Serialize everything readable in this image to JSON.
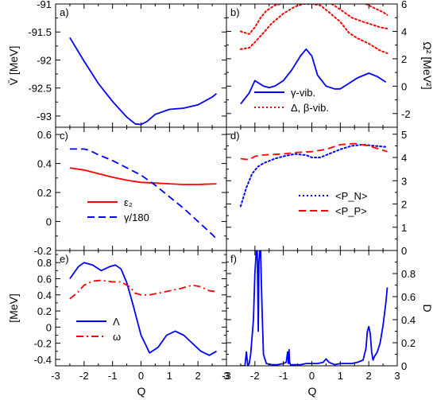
{
  "chart_data": [
    {
      "id": "a",
      "panel_label": "a)",
      "type": "line",
      "ylabel": "V̄ [MeV]",
      "ylabel_side": "left",
      "xlim": [
        -3,
        3
      ],
      "ylim": [
        -93.2,
        -91
      ],
      "yticks": [
        "-91",
        "-91.5",
        "-92",
        "-92.5",
        "-93"
      ],
      "ytick_values": [
        -91,
        -91.5,
        -92,
        -92.5,
        -93
      ],
      "series": [
        {
          "color": "#0000ff",
          "dash": "solid",
          "x": [
            -2.5,
            -2.0,
            -1.5,
            -1.0,
            -0.5,
            -0.2,
            0.0,
            0.2,
            0.5,
            1.0,
            1.5,
            2.0,
            2.5,
            2.65
          ],
          "y": [
            -91.6,
            -92.02,
            -92.42,
            -92.74,
            -93.02,
            -93.14,
            -93.15,
            -93.1,
            -92.97,
            -92.88,
            -92.86,
            -92.8,
            -92.66,
            -92.6
          ]
        }
      ]
    },
    {
      "id": "b",
      "panel_label": "b)",
      "type": "line",
      "ylabel": "Ω² [MeV²]",
      "ylabel_side": "right",
      "xlim": [
        -3,
        3
      ],
      "ylim": [
        -3,
        6
      ],
      "yticks": [
        "6",
        "4",
        "2",
        "0",
        "-2"
      ],
      "ytick_values": [
        6,
        4,
        2,
        0,
        -2
      ],
      "legend": [
        "γ-vib.",
        "Δ, β-vib."
      ],
      "series": [
        {
          "name": "γ-vib.",
          "color": "#0000ff",
          "dash": "solid",
          "x": [
            -2.5,
            -2.2,
            -2.0,
            -1.7,
            -1.5,
            -1.3,
            -1.0,
            -0.7,
            -0.4,
            -0.2,
            0.0,
            0.2,
            0.5,
            0.8,
            1.0,
            1.3,
            1.6,
            2.0,
            2.3,
            2.6
          ],
          "y": [
            -1.3,
            -0.5,
            0.4,
            0.0,
            -0.1,
            0.0,
            0.4,
            1.2,
            2.2,
            2.7,
            2.2,
            0.8,
            0.0,
            -0.2,
            -0.2,
            0.2,
            0.6,
            0.95,
            0.7,
            0.3
          ]
        },
        {
          "name": "Δ, β-vib.",
          "color": "#ff0000",
          "dash": "dotted",
          "x": [
            -2.5,
            -2.2,
            -2.0,
            -1.7,
            -1.4,
            -1.0,
            -0.6,
            -0.3,
            0.0,
            0.3,
            0.6,
            1.0,
            1.3,
            1.6,
            2.0,
            2.4,
            2.65
          ],
          "y": [
            2.7,
            2.8,
            3.2,
            3.9,
            4.6,
            5.3,
            5.8,
            6.0,
            6.0,
            5.9,
            5.4,
            4.7,
            3.9,
            3.5,
            3.1,
            2.6,
            2.4
          ]
        },
        {
          "color": "#ff0000",
          "dash": "dotted",
          "x": [
            -2.5,
            -2.2,
            -2.0,
            -1.8,
            -1.6,
            -1.3,
            -1.1
          ],
          "y": [
            4.0,
            3.8,
            4.3,
            5.0,
            5.5,
            5.9,
            6.0
          ]
        },
        {
          "color": "#ff0000",
          "dash": "dotted",
          "x": [
            0.7,
            1.0,
            1.4,
            1.8,
            2.1,
            2.4,
            2.65
          ],
          "y": [
            6.0,
            5.6,
            5.0,
            4.7,
            4.5,
            4.3,
            4.2
          ]
        },
        {
          "color": "#ff0000",
          "dash": "dotted",
          "x": [
            1.9,
            2.2,
            2.5,
            2.65
          ],
          "y": [
            6.0,
            5.7,
            5.4,
            5.2
          ]
        }
      ]
    },
    {
      "id": "c",
      "panel_label": "c)",
      "type": "line",
      "ylabel": "",
      "ylabel_side": "left",
      "xlim": [
        -3,
        3
      ],
      "ylim": [
        -0.2,
        0.65
      ],
      "yticks": [
        "0.6",
        "0.4",
        "0.2",
        "0",
        "-0.2"
      ],
      "ytick_values": [
        0.6,
        0.4,
        0.2,
        0,
        -0.2
      ],
      "legend": [
        "ε₂",
        "γ/180"
      ],
      "series": [
        {
          "name": "ε₂",
          "color": "#ff0000",
          "dash": "solid",
          "x": [
            -2.5,
            -2.0,
            -1.5,
            -1.0,
            -0.5,
            0.0,
            0.5,
            1.0,
            1.5,
            2.0,
            2.65
          ],
          "y": [
            0.37,
            0.355,
            0.33,
            0.305,
            0.285,
            0.27,
            0.265,
            0.26,
            0.255,
            0.255,
            0.26
          ]
        },
        {
          "name": "γ/180",
          "color": "#0000ff",
          "dash": "dashed",
          "x": [
            -2.5,
            -2.0,
            -1.8,
            -1.5,
            -1.0,
            -0.5,
            0.0,
            0.5,
            1.0,
            1.5,
            2.0,
            2.5,
            2.65
          ],
          "y": [
            0.5,
            0.5,
            0.49,
            0.46,
            0.42,
            0.37,
            0.32,
            0.25,
            0.17,
            0.09,
            0.0,
            -0.09,
            -0.12
          ]
        }
      ]
    },
    {
      "id": "d",
      "panel_label": "d)",
      "type": "line",
      "ylabel": "",
      "ylabel_side": "right",
      "xlim": [
        -3,
        3
      ],
      "ylim": [
        0,
        5.3
      ],
      "yticks": [
        "5",
        "4",
        "3",
        "2",
        "1",
        "0"
      ],
      "ytick_values": [
        5,
        4,
        3,
        2,
        1,
        0
      ],
      "legend": [
        "<P_N>",
        "<P_P>"
      ],
      "series": [
        {
          "name": "<P_N>",
          "color": "#0000ff",
          "dash": "dotted",
          "x": [
            -2.5,
            -2.3,
            -2.1,
            -1.9,
            -1.7,
            -1.5,
            -1.3,
            -1.0,
            -0.6,
            -0.2,
            0.0,
            0.3,
            0.6,
            1.0,
            1.4,
            1.8,
            2.2,
            2.65
          ],
          "y": [
            1.9,
            2.7,
            3.3,
            3.6,
            3.75,
            3.85,
            3.95,
            4.05,
            4.15,
            4.1,
            4.0,
            4.0,
            4.15,
            4.35,
            4.5,
            4.55,
            4.5,
            4.45
          ]
        },
        {
          "name": "<P_P>",
          "color": "#ff0000",
          "dash": "dashed",
          "x": [
            -2.5,
            -2.2,
            -2.0,
            -1.8,
            -1.5,
            -1.0,
            -0.5,
            0.0,
            0.5,
            1.0,
            1.5,
            2.0,
            2.65
          ],
          "y": [
            3.95,
            3.9,
            4.05,
            4.1,
            4.12,
            4.15,
            4.22,
            4.25,
            4.35,
            4.55,
            4.6,
            4.5,
            4.25
          ]
        }
      ]
    },
    {
      "id": "e",
      "panel_label": "e)",
      "type": "line",
      "ylabel": "[MeV]",
      "ylabel_side": "left",
      "xlim": [
        -3,
        3
      ],
      "ylim": [
        -0.48,
        0.95
      ],
      "yticks": [
        "0.8",
        "0.6",
        "0.4",
        "0.2",
        "0",
        "-0.2",
        "-0.4"
      ],
      "ytick_values": [
        0.8,
        0.6,
        0.4,
        0.2,
        0,
        -0.2,
        -0.4
      ],
      "legend": [
        "Λ",
        "ω"
      ],
      "series": [
        {
          "name": "Λ",
          "color": "#0000ff",
          "dash": "solid",
          "x": [
            -2.5,
            -2.2,
            -2.0,
            -1.7,
            -1.4,
            -1.1,
            -0.9,
            -0.7,
            -0.5,
            -0.3,
            0.0,
            0.3,
            0.6,
            0.9,
            1.2,
            1.5,
            1.8,
            2.1,
            2.4,
            2.65
          ],
          "y": [
            0.6,
            0.75,
            0.8,
            0.77,
            0.7,
            0.75,
            0.77,
            0.72,
            0.55,
            0.3,
            -0.1,
            -0.32,
            -0.25,
            -0.1,
            -0.05,
            -0.1,
            -0.2,
            -0.3,
            -0.35,
            -0.3
          ]
        },
        {
          "name": "ω",
          "color": "#ff0000",
          "dash": "dashdot",
          "x": [
            -2.5,
            -2.2,
            -2.0,
            -1.7,
            -1.4,
            -1.0,
            -0.7,
            -0.4,
            -0.2,
            0.0,
            0.3,
            0.6,
            1.0,
            1.4,
            1.8,
            2.1,
            2.4,
            2.65
          ],
          "y": [
            0.35,
            0.44,
            0.52,
            0.57,
            0.58,
            0.56,
            0.56,
            0.5,
            0.42,
            0.4,
            0.4,
            0.42,
            0.45,
            0.48,
            0.52,
            0.5,
            0.45,
            0.44
          ]
        }
      ]
    },
    {
      "id": "f",
      "panel_label": "f)",
      "type": "line",
      "ylabel": "D",
      "ylabel_side": "right",
      "xlim": [
        -3,
        3
      ],
      "ylim": [
        0,
        1.0
      ],
      "yticks": [
        "0.8",
        "0.6",
        "0.4",
        "0.2",
        "0"
      ],
      "ytick_values": [
        0.8,
        0.6,
        0.4,
        0.2,
        0
      ],
      "series": [
        {
          "color": "#0000ff",
          "dash": "solid",
          "x": [
            -2.5,
            -2.35,
            -2.3,
            -2.25,
            -2.2,
            -2.15,
            -2.05,
            -2.0,
            -1.95,
            -1.92,
            -1.9,
            -1.88,
            -1.86,
            -1.83,
            -1.8,
            -1.75,
            -1.7,
            -1.6,
            -1.4,
            -1.2,
            -1.0,
            -0.9,
            -0.85,
            -0.82,
            -0.8,
            -0.78,
            -0.75,
            -0.7,
            -0.6,
            -0.4,
            -0.2,
            0.0,
            0.2,
            0.4,
            0.5,
            0.6,
            0.7,
            0.8,
            1.0,
            1.2,
            1.4,
            1.6,
            1.8,
            1.9,
            1.95,
            2.0,
            2.05,
            2.1,
            2.15,
            2.2,
            2.3,
            2.4,
            2.5,
            2.6,
            2.65
          ],
          "y": [
            0.0,
            0.0,
            0.12,
            0.0,
            0.02,
            0.1,
            0.4,
            0.8,
            1.0,
            1.0,
            0.7,
            0.3,
            0.9,
            1.0,
            1.0,
            0.5,
            0.1,
            0.02,
            0.01,
            0.01,
            0.02,
            0.03,
            0.12,
            0.02,
            0.14,
            0.03,
            0.01,
            0.01,
            0.01,
            0.01,
            0.02,
            0.02,
            0.02,
            0.03,
            0.06,
            0.03,
            0.02,
            0.01,
            0.02,
            0.02,
            0.02,
            0.03,
            0.05,
            0.15,
            0.3,
            0.34,
            0.28,
            0.12,
            0.05,
            0.08,
            0.12,
            0.2,
            0.35,
            0.55,
            0.68
          ]
        }
      ]
    }
  ],
  "xaxis": {
    "label": "Q",
    "ticks": [
      "-3",
      "-2",
      "-1",
      "0",
      "1",
      "2",
      "3"
    ],
    "values": [
      -3,
      -2,
      -1,
      0,
      1,
      2,
      3
    ]
  }
}
